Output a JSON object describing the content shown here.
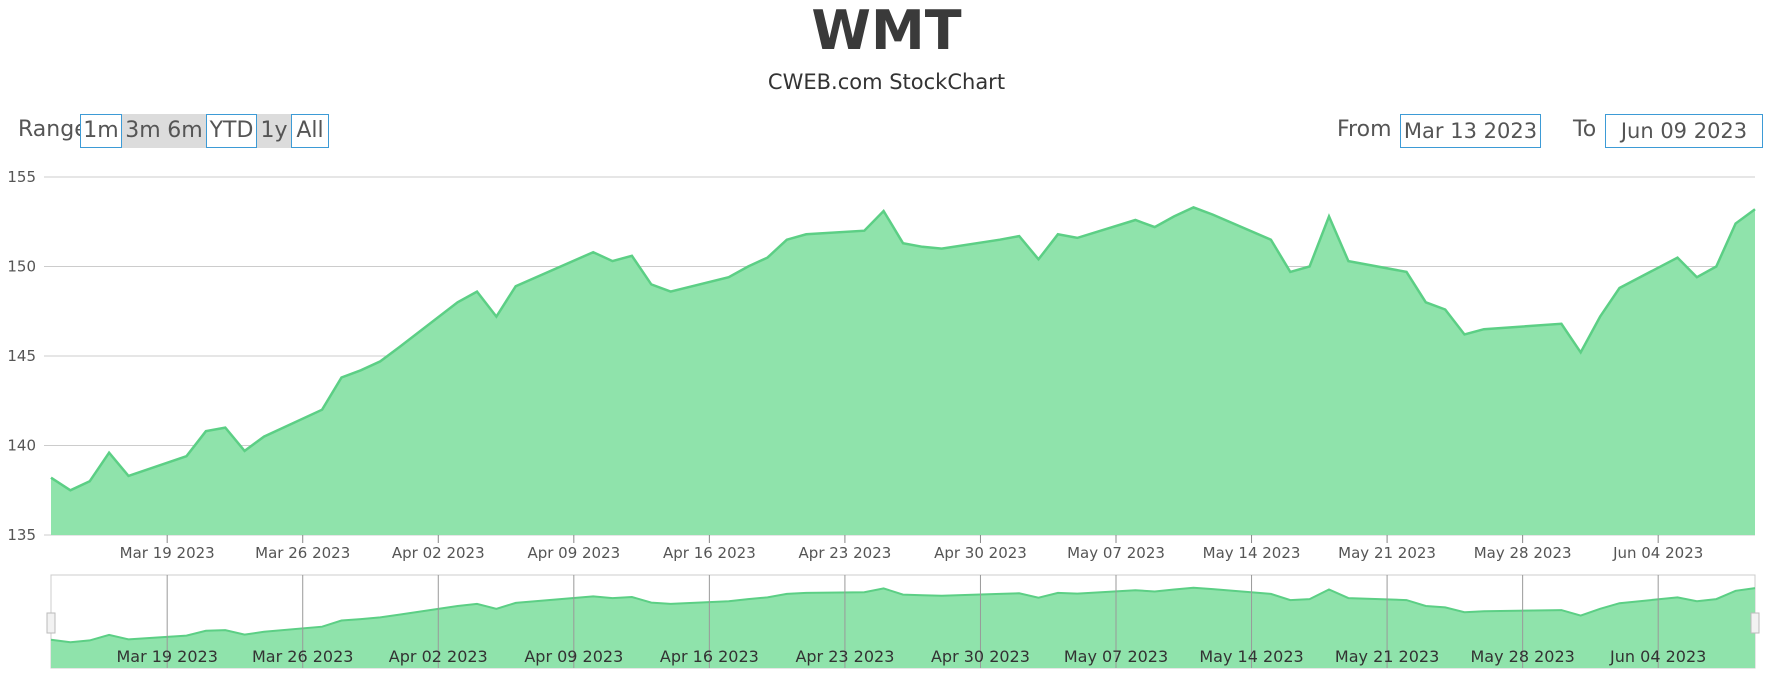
{
  "title": "WMT",
  "subtitle": "CWEB.com StockChart",
  "range_selector": {
    "label": "Range",
    "buttons": [
      {
        "label": "1m",
        "active": false
      },
      {
        "label": "3m",
        "active": true
      },
      {
        "label": "6m",
        "active": true
      },
      {
        "label": "YTD",
        "active": false
      },
      {
        "label": "1y",
        "active": true
      },
      {
        "label": "All",
        "active": false
      }
    ]
  },
  "date_range": {
    "from_label": "From",
    "from_value": "Mar 13 2023",
    "to_label": "To",
    "to_value": "Jun 09 2023"
  },
  "colors": {
    "area_fill": "#8fe3ab",
    "area_line": "#5ccf85",
    "grid": "#cccccc",
    "button_border": "#3d9bd6"
  },
  "chart_data": {
    "type": "area",
    "title": "WMT",
    "subtitle": "CWEB.com StockChart",
    "xlabel": "",
    "ylabel": "",
    "ylim": [
      135,
      155
    ],
    "y_ticks": [
      135,
      140,
      145,
      150,
      155
    ],
    "xlim": [
      "2023-03-13",
      "2023-06-09"
    ],
    "x_ticks": [
      "Mar 19 2023",
      "Mar 26 2023",
      "Apr 02 2023",
      "Apr 09 2023",
      "Apr 16 2023",
      "Apr 23 2023",
      "Apr 30 2023",
      "May 07 2023",
      "May 14 2023",
      "May 21 2023",
      "May 28 2023",
      "Jun 04 2023"
    ],
    "grid": true,
    "navigator": true,
    "series": [
      {
        "x": [
          "2023-03-13",
          "2023-03-14",
          "2023-03-15",
          "2023-03-16",
          "2023-03-17",
          "2023-03-20",
          "2023-03-21",
          "2023-03-22",
          "2023-03-23",
          "2023-03-24",
          "2023-03-27",
          "2023-03-28",
          "2023-03-29",
          "2023-03-30",
          "2023-03-31",
          "2023-04-03",
          "2023-04-04",
          "2023-04-05",
          "2023-04-06",
          "2023-04-10",
          "2023-04-11",
          "2023-04-12",
          "2023-04-13",
          "2023-04-14",
          "2023-04-17",
          "2023-04-18",
          "2023-04-19",
          "2023-04-20",
          "2023-04-21",
          "2023-04-24",
          "2023-04-25",
          "2023-04-26",
          "2023-04-27",
          "2023-04-28",
          "2023-05-01",
          "2023-05-02",
          "2023-05-03",
          "2023-05-04",
          "2023-05-05",
          "2023-05-08",
          "2023-05-09",
          "2023-05-10",
          "2023-05-11",
          "2023-05-12",
          "2023-05-15",
          "2023-05-16",
          "2023-05-17",
          "2023-05-18",
          "2023-05-19",
          "2023-05-22",
          "2023-05-23",
          "2023-05-24",
          "2023-05-25",
          "2023-05-26",
          "2023-05-30",
          "2023-05-31",
          "2023-06-01",
          "2023-06-02",
          "2023-06-05",
          "2023-06-06",
          "2023-06-07",
          "2023-06-08",
          "2023-06-09"
        ],
        "values": [
          138.2,
          137.5,
          138.0,
          139.6,
          138.3,
          139.4,
          140.8,
          141.0,
          139.7,
          140.5,
          142.0,
          143.8,
          144.2,
          144.7,
          145.5,
          148.0,
          148.6,
          147.2,
          148.9,
          150.8,
          150.3,
          150.6,
          149.0,
          148.6,
          149.4,
          150.0,
          150.5,
          151.5,
          151.8,
          152.0,
          153.1,
          151.3,
          151.1,
          151.0,
          151.5,
          151.7,
          150.4,
          151.8,
          151.6,
          152.6,
          152.2,
          152.8,
          153.3,
          152.9,
          151.5,
          149.7,
          150.0,
          152.8,
          150.3,
          149.7,
          148.0,
          147.6,
          146.2,
          146.5,
          146.8,
          145.2,
          147.2,
          148.8,
          150.5,
          149.4,
          150.0,
          152.4,
          153.2
        ]
      }
    ]
  }
}
